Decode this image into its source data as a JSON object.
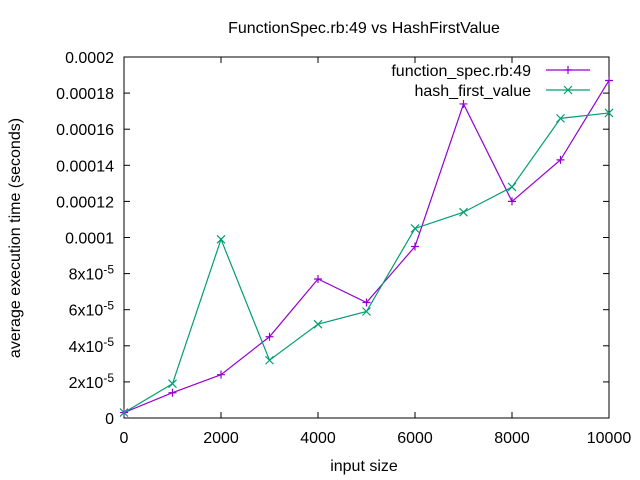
{
  "chart_data": {
    "type": "line",
    "title": "FunctionSpec.rb:49 vs HashFirstValue",
    "xlabel": "input size",
    "ylabel": "average execution time (seconds)",
    "xlim": [
      0,
      10000
    ],
    "ylim": [
      0,
      0.0002
    ],
    "xticks": [
      0,
      2000,
      4000,
      6000,
      8000,
      10000
    ],
    "xtick_labels": [
      "0",
      "2000",
      "4000",
      "6000",
      "8000",
      "10000"
    ],
    "yticks": [
      0,
      2e-05,
      4e-05,
      6e-05,
      8e-05,
      0.0001,
      0.00012,
      0.00014,
      0.00016,
      0.00018,
      0.0002
    ],
    "ytick_labels": [
      {
        "m": "0",
        "e": ""
      },
      {
        "m": "2x10",
        "e": "-5"
      },
      {
        "m": "4x10",
        "e": "-5"
      },
      {
        "m": "6x10",
        "e": "-5"
      },
      {
        "m": "8x10",
        "e": "-5"
      },
      {
        "m": "0.0001",
        "e": ""
      },
      {
        "m": "0.00012",
        "e": ""
      },
      {
        "m": "0.00014",
        "e": ""
      },
      {
        "m": "0.00016",
        "e": ""
      },
      {
        "m": "0.00018",
        "e": ""
      },
      {
        "m": "0.0002",
        "e": ""
      }
    ],
    "grid": false,
    "legend_position": "top-right",
    "x": [
      0,
      1000,
      2000,
      3000,
      4000,
      5000,
      6000,
      7000,
      8000,
      9000,
      10000
    ],
    "series": [
      {
        "name": "function_spec.rb:49",
        "color": "#9400d3",
        "marker": "plus",
        "values": [
          3e-06,
          1.4e-05,
          2.4e-05,
          4.5e-05,
          7.7e-05,
          6.4e-05,
          9.5e-05,
          0.000174,
          0.00012,
          0.000143,
          0.000187
        ]
      },
      {
        "name": "hash_first_value",
        "color": "#009e73",
        "marker": "cross",
        "values": [
          3e-06,
          1.9e-05,
          9.9e-05,
          3.2e-05,
          5.2e-05,
          5.9e-05,
          0.000105,
          0.000114,
          0.000128,
          0.000166,
          0.000169
        ]
      }
    ]
  }
}
